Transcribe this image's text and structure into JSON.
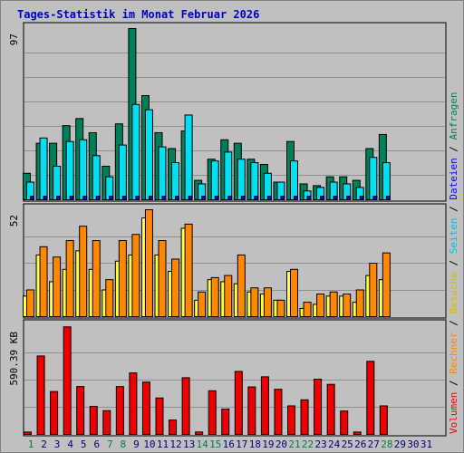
{
  "title": "Tages-Statistik im Monat Februar 2026",
  "colors": {
    "anfragen": "#00805a",
    "dateien": "#00e0f0",
    "seiten": "#00e0f0",
    "besuche": "#ffff40",
    "rechner": "#ff8800",
    "volumen": "#ee0000",
    "weekend_label": "#008040",
    "weekday_label": "#000080",
    "grid": "#909090",
    "panel_bg": "#c0c0c0"
  },
  "legend": [
    {
      "label": "Anfragen",
      "color": "#00805a"
    },
    {
      "label": "Dateien",
      "color": "#0000ff"
    },
    {
      "label": "Seiten",
      "color": "#00c0e0"
    },
    {
      "label": "Besuche",
      "color": "#d0c000"
    },
    {
      "label": "Rechner",
      "color": "#ff8800"
    },
    {
      "label": "Volumen",
      "color": "#ee0000"
    }
  ],
  "legend_separator": "/",
  "chart_data": [
    {
      "type": "bar",
      "panel": "hits",
      "ymax_label": "97",
      "ylim": [
        0,
        97
      ],
      "x": [
        "1",
        "2",
        "3",
        "4",
        "5",
        "6",
        "7",
        "8",
        "9",
        "10",
        "11",
        "12",
        "13",
        "14",
        "15",
        "16",
        "17",
        "18",
        "19",
        "20",
        "21",
        "22",
        "23",
        "24",
        "25",
        "26",
        "27",
        "28",
        "29",
        "30",
        "31"
      ],
      "weekend_days": [
        1,
        7,
        8,
        14,
        15,
        21,
        22,
        28
      ],
      "series": [
        {
          "name": "Anfragen",
          "values": [
            15,
            32,
            32,
            42,
            46,
            38,
            19,
            43,
            97,
            59,
            38,
            29,
            39,
            11,
            23,
            34,
            32,
            23,
            20,
            10,
            33,
            9,
            8,
            13,
            13,
            11,
            29,
            37,
            0,
            0,
            0
          ]
        },
        {
          "name": "Dateien",
          "values": [
            10,
            35,
            19,
            33,
            34,
            25,
            13,
            31,
            54,
            51,
            30,
            21,
            48,
            9,
            22,
            27,
            23,
            21,
            15,
            10,
            22,
            5,
            7,
            10,
            9,
            7,
            24,
            21,
            0,
            0,
            0
          ]
        },
        {
          "name": "Seiten",
          "values": [
            2,
            2,
            2,
            2,
            2,
            2,
            2,
            2,
            2,
            2,
            2,
            2,
            2,
            2,
            2,
            2,
            2,
            2,
            2,
            2,
            2,
            2,
            2,
            2,
            2,
            2,
            2,
            2,
            0,
            0,
            0
          ]
        }
      ]
    },
    {
      "type": "bar",
      "panel": "visits",
      "ymax_label": "52",
      "ylim": [
        0,
        52
      ],
      "x": [
        "1",
        "2",
        "3",
        "4",
        "5",
        "6",
        "7",
        "8",
        "9",
        "10",
        "11",
        "12",
        "13",
        "14",
        "15",
        "16",
        "17",
        "18",
        "19",
        "20",
        "21",
        "22",
        "23",
        "24",
        "25",
        "26",
        "27",
        "28",
        "29",
        "30",
        "31"
      ],
      "series": [
        {
          "name": "Besuche",
          "values": [
            10,
            30,
            17,
            23,
            32,
            23,
            13,
            27,
            30,
            48,
            30,
            22,
            43,
            8,
            18,
            17,
            16,
            12,
            11,
            8,
            22,
            4,
            6,
            10,
            10,
            7,
            20,
            18,
            0,
            0,
            0
          ]
        },
        {
          "name": "Rechner",
          "values": [
            13,
            34,
            29,
            37,
            44,
            37,
            18,
            37,
            40,
            52,
            37,
            28,
            45,
            12,
            19,
            20,
            30,
            14,
            14,
            8,
            23,
            7,
            11,
            12,
            11,
            13,
            26,
            31,
            0,
            0,
            0
          ]
        }
      ]
    },
    {
      "type": "bar",
      "panel": "volume",
      "ymax_label": "590.39 KB",
      "ylim": [
        0,
        590.39
      ],
      "x": [
        "1",
        "2",
        "3",
        "4",
        "5",
        "6",
        "7",
        "8",
        "9",
        "10",
        "11",
        "12",
        "13",
        "14",
        "15",
        "16",
        "17",
        "18",
        "19",
        "20",
        "21",
        "22",
        "23",
        "24",
        "25",
        "26",
        "27",
        "28",
        "29",
        "30",
        "31"
      ],
      "series": [
        {
          "name": "Volumen",
          "values": [
            13,
            426,
            233,
            584,
            260,
            152,
            129,
            260,
            334,
            284,
            198,
            78,
            308,
            13,
            237,
            138,
            342,
            258,
            313,
            245,
            155,
            188,
            300,
            272,
            127,
            13,
            397,
            155,
            0,
            0,
            0
          ]
        }
      ]
    }
  ]
}
